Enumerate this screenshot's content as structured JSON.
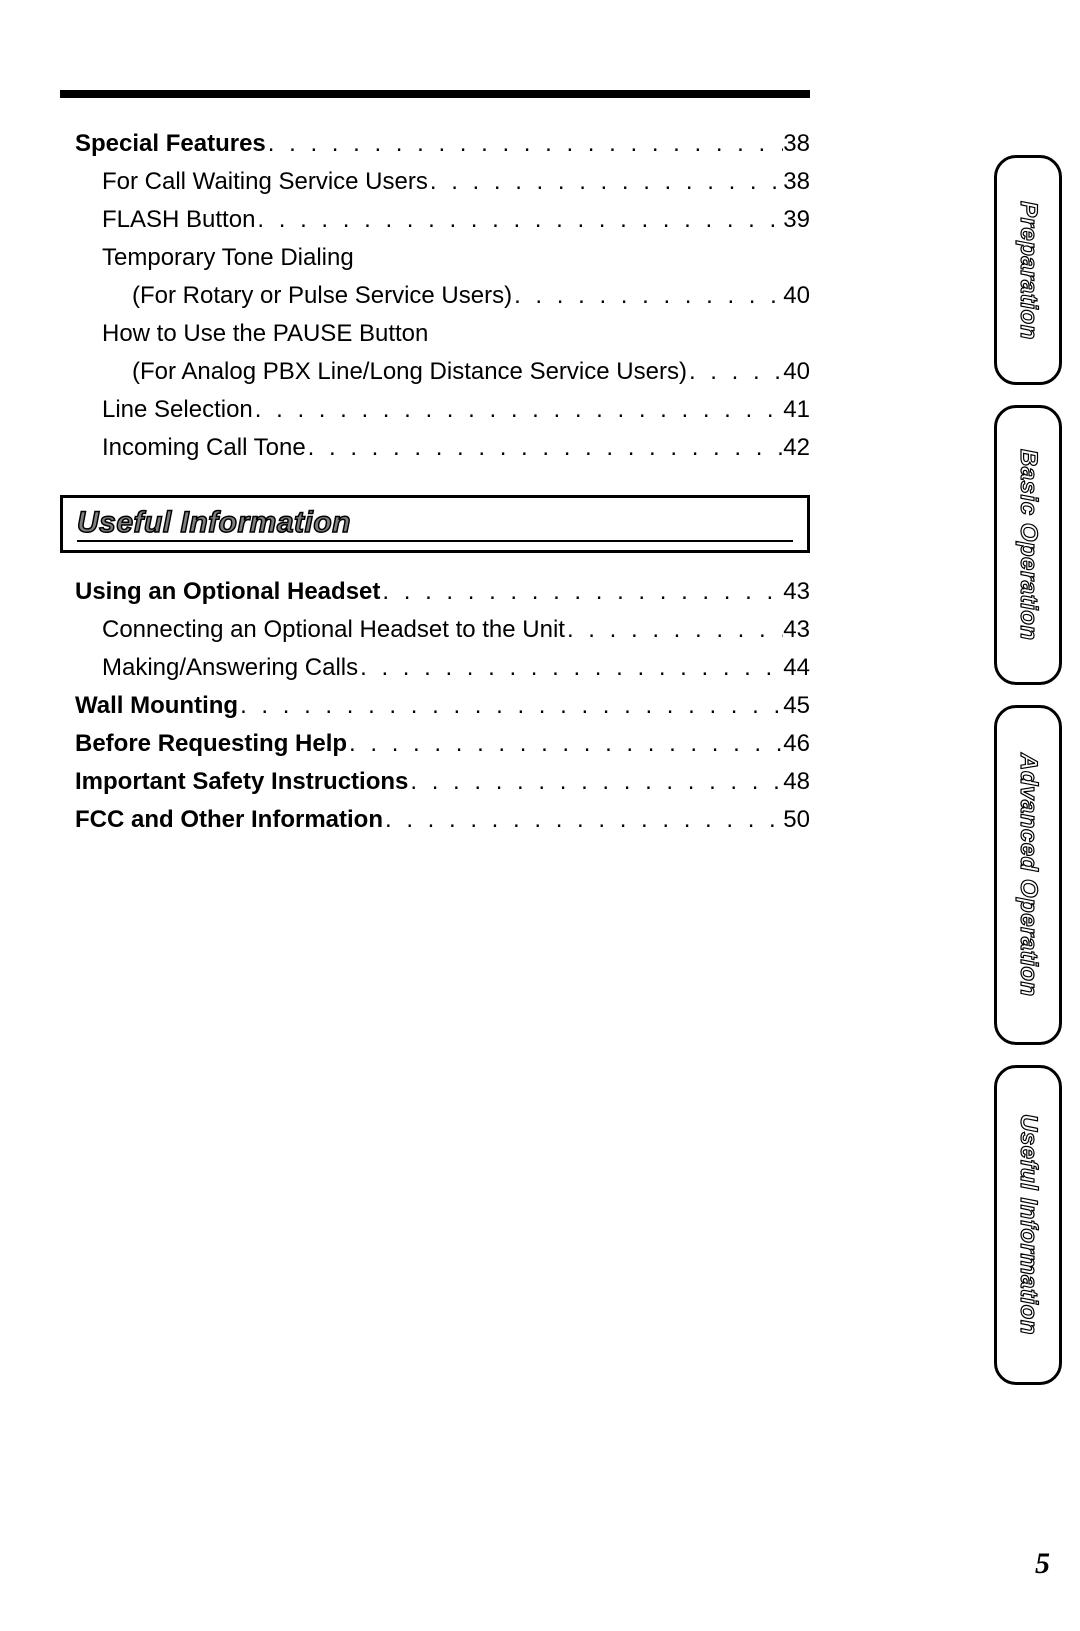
{
  "sections": {
    "special_features": {
      "heading": {
        "label": "Special Features",
        "page": "38"
      },
      "items": [
        {
          "label": "For Call Waiting Service Users",
          "page": "38"
        },
        {
          "label": "FLASH Button",
          "page": "39"
        },
        {
          "label": "Temporary Tone Dialing",
          "page": ""
        },
        {
          "label": "(For Rotary or Pulse Service Users)",
          "page": "40",
          "indent": 2
        },
        {
          "label": "How to Use the PAUSE Button",
          "page": ""
        },
        {
          "label": "(For Analog PBX Line/Long Distance Service Users)",
          "page": "40",
          "indent": 2
        },
        {
          "label": "Line Selection",
          "page": "41"
        },
        {
          "label": "Incoming Call Tone",
          "page": "42"
        }
      ]
    },
    "useful_info_title": "Useful Information",
    "useful_info": [
      {
        "label": "Using an Optional Headset",
        "page": "43",
        "bold": true
      },
      {
        "label": "Connecting an Optional Headset to the Unit",
        "page": "43",
        "indent": 1
      },
      {
        "label": "Making/Answering Calls",
        "page": "44",
        "indent": 1
      },
      {
        "label": "Wall Mounting",
        "page": "45",
        "bold": true
      },
      {
        "label": "Before Requesting Help",
        "page": "46",
        "bold": true
      },
      {
        "label": "Important Safety Instructions",
        "page": "48",
        "bold": true
      },
      {
        "label": "FCC and Other Information",
        "page": "50",
        "bold": true
      }
    ]
  },
  "tabs": [
    {
      "label": "Preparation",
      "heightClass": "h230"
    },
    {
      "label": "Basic Operation",
      "heightClass": "h280"
    },
    {
      "label": "Advanced Operation",
      "heightClass": "h340"
    },
    {
      "label": "Useful Information",
      "heightClass": "h320"
    }
  ],
  "page_number": "5",
  "dot_fill": ". . . . . . . . . . . . . . . . . . . . . . . . . . . . . . . . . . . . . . . . . . . . . . . . . . . . . . . . . . . ."
}
